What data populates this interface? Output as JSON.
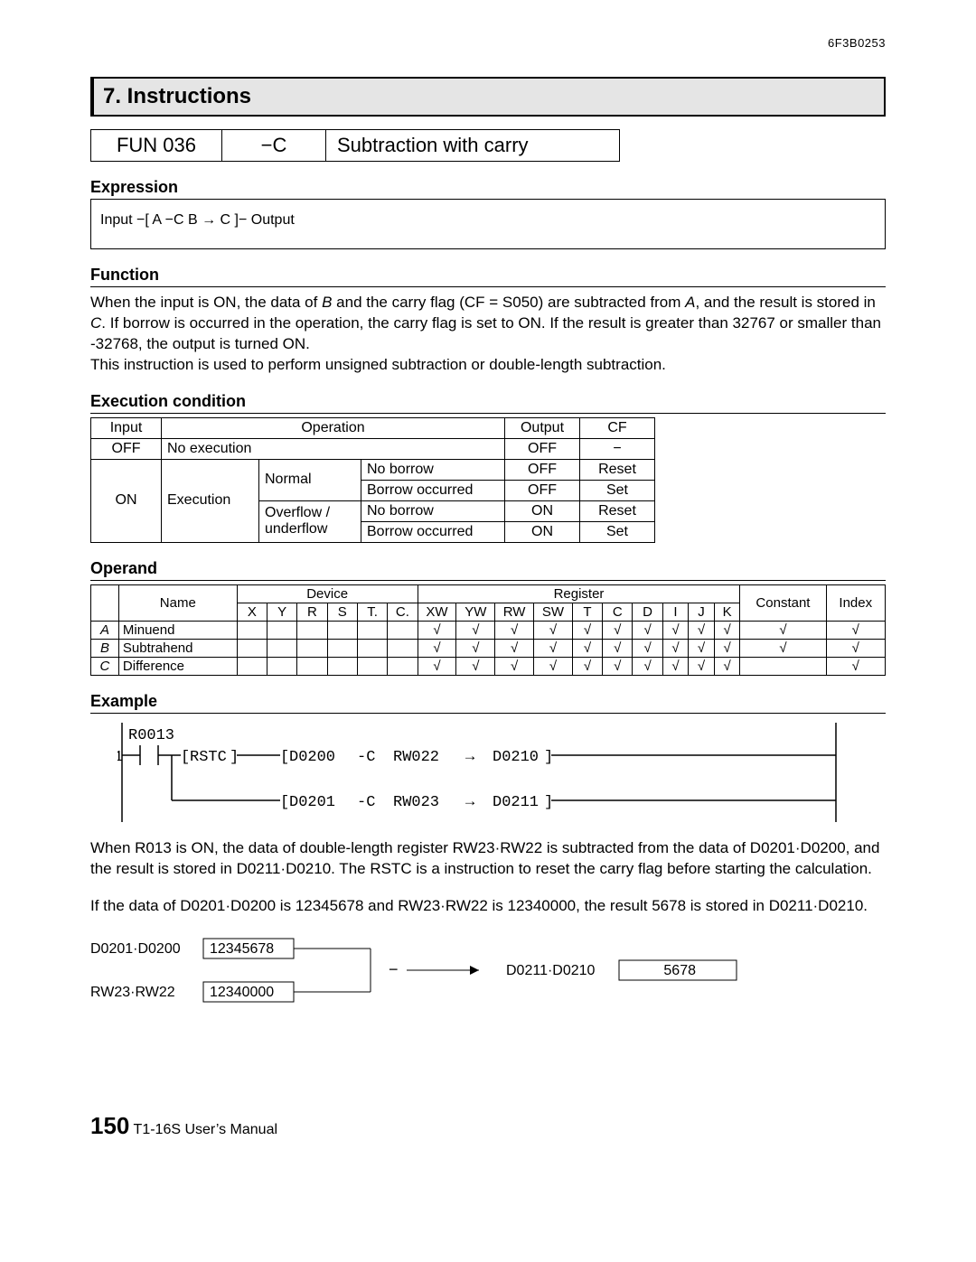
{
  "doc_code": "6F3B0253",
  "chapter_title": "7. Instructions",
  "title_row": {
    "fun": "FUN 036",
    "sym": "−C",
    "name": "Subtraction with carry"
  },
  "expression_head": "Expression",
  "expression_text": "Input  −[ A  −C  B  →  C ]−  Output",
  "function_head": "Function",
  "function_text_1": "When the input is ON, the data of ",
  "function_text_B": "B",
  "function_text_2": " and the carry flag (CF = S050) are subtracted from ",
  "function_text_A": "A",
  "function_text_3": ", and the result is stored in ",
  "function_text_C": "C",
  "function_text_4": ". If borrow is occurred in the operation, the carry flag is set to ON. If the result is greater than 32767 or smaller than -32768, the output is turned ON.",
  "function_text_5": "This instruction is used to perform unsigned subtraction or double-length subtraction.",
  "exec_head": "Execution condition",
  "exec": {
    "hdr_input": "Input",
    "hdr_operation": "Operation",
    "hdr_output": "Output",
    "hdr_cf": "CF",
    "off": "OFF",
    "on": "ON",
    "noexec": "No execution",
    "execution": "Execution",
    "normal": "Normal",
    "overflow": "Overflow /",
    "underflow": "underflow",
    "noborrow": "No borrow",
    "borrow": "Borrow occurred",
    "reset": "Reset",
    "set": "Set",
    "dash": "−"
  },
  "operand_head": "Operand",
  "operand": {
    "hdr_name": "Name",
    "hdr_device": "Device",
    "hdr_register": "Register",
    "hdr_constant": "Constant",
    "hdr_index": "Index",
    "dev_cols": [
      "X",
      "Y",
      "R",
      "S",
      "T.",
      "C.",
      "XW",
      "YW",
      "RW",
      "SW",
      "T",
      "C",
      "D",
      "I",
      "J",
      "K"
    ],
    "rows": [
      {
        "sym": "A",
        "name": "Minuend",
        "dev": [
          "",
          "",
          "",
          "",
          "",
          "",
          "√",
          "√",
          "√",
          "√",
          "√",
          "√",
          "√",
          "√",
          "√",
          "√"
        ],
        "const": "√",
        "index": "√"
      },
      {
        "sym": "B",
        "name": "Subtrahend",
        "dev": [
          "",
          "",
          "",
          "",
          "",
          "",
          "√",
          "√",
          "√",
          "√",
          "√",
          "√",
          "√",
          "√",
          "√",
          "√"
        ],
        "const": "√",
        "index": "√"
      },
      {
        "sym": "C",
        "name": "Difference",
        "dev": [
          "",
          "",
          "",
          "",
          "",
          "",
          "√",
          "√",
          "√",
          "√",
          "√",
          "√",
          "√",
          "√",
          "√",
          "√"
        ],
        "const": "",
        "index": "√"
      }
    ]
  },
  "example_head": "Example",
  "ladder": {
    "contact": "R0013",
    "one": "1",
    "rstc": "RSTC",
    "line1_a": "D0200",
    "line1_op": "-C",
    "line1_b": "RW022",
    "line1_arrow": "→",
    "line1_c": "D0210",
    "line2_a": "D0201",
    "line2_op": "-C",
    "line2_b": "RW023",
    "line2_arrow": "→",
    "line2_c": "D0211"
  },
  "example_p1_a": "When R013 is ON, the data of double-length register RW23·RW22 is subtracted from the data of D0201·D0200, and the result is stored in D0211·D0210. The RSTC is a instruction to reset the carry flag before starting the calculation.",
  "example_p2": "If the data of D0201·D0200 is 12345678 and RW23·RW22 is 12340000, the result 5678 is stored in D0211·D0210.",
  "calc": {
    "d_label": "D0201·D0200",
    "d_val": "12345678",
    "r_label": "RW23·RW22",
    "r_val": "12340000",
    "minus": "−",
    "res_label": "D0211·D0210",
    "res_val": "5678"
  },
  "footer_page": "150",
  "footer_text": "  T1-16S User’s Manual"
}
